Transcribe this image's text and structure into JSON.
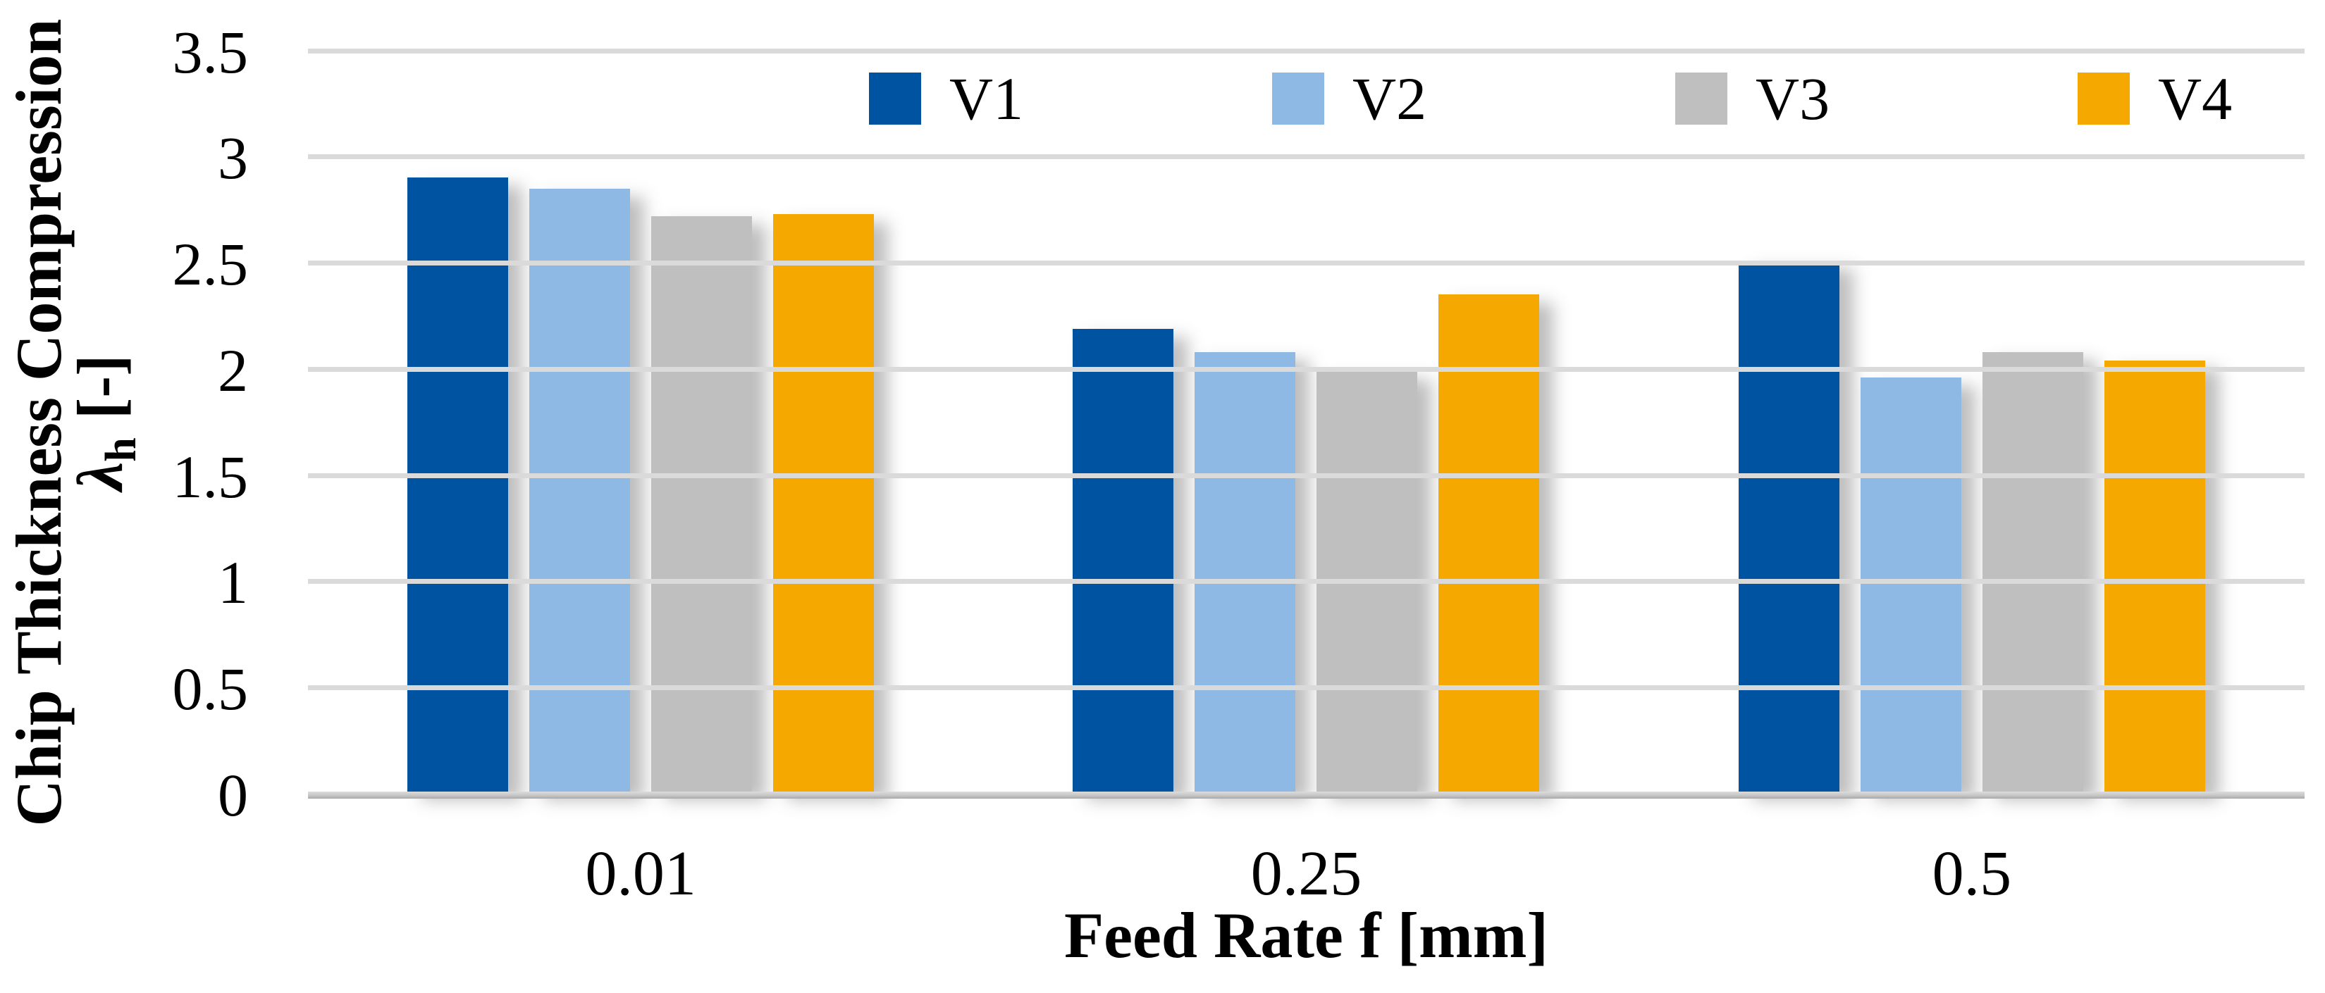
{
  "figure": {
    "y_axis": {
      "title_line1": "Chip Thickness Compression",
      "title_lambda": "λ",
      "title_sub": "h",
      "title_units": "[-]"
    },
    "x_axis": {
      "title": "Feed Rate f [mm]"
    },
    "colors": {
      "gridline": "#DADADA",
      "zero_line": "#C6C6C6"
    }
  },
  "chart_data": {
    "type": "bar",
    "title": "",
    "categories": [
      "0.01",
      "0.25",
      "0.5"
    ],
    "series": [
      {
        "name": "V1",
        "color": "#0053A0",
        "values": [
          2.9,
          2.19,
          2.51
        ]
      },
      {
        "name": "V2",
        "color": "#8EB9E5",
        "values": [
          2.85,
          2.08,
          1.96
        ]
      },
      {
        "name": "V3",
        "color": "#BFBFBF",
        "values": [
          2.72,
          1.99,
          2.08
        ]
      },
      {
        "name": "V4",
        "color": "#F5A800",
        "values": [
          2.73,
          2.35,
          2.04
        ]
      }
    ],
    "xlabel": "Feed Rate f [mm]",
    "ylabel": "Chip Thickness Compression λh [-]",
    "ylim": [
      0,
      3.5
    ],
    "yticks": [
      0,
      0.5,
      1,
      1.5,
      2,
      2.5,
      3,
      3.5
    ],
    "grid": true,
    "legend_position": "top-inside"
  }
}
